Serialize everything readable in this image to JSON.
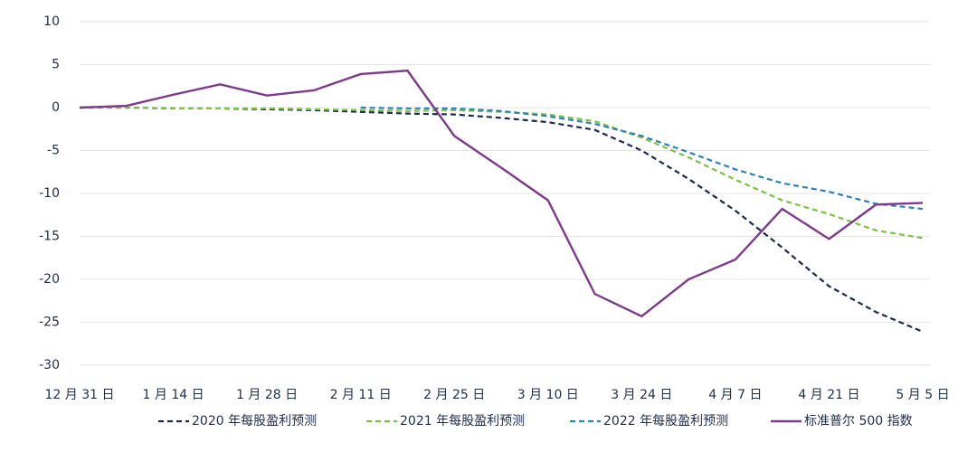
{
  "chart_data": {
    "type": "line",
    "categories": [
      "12 月 31 日",
      null,
      "1 月 14 日",
      null,
      "1 月 28 日",
      null,
      "2 月 11 日",
      null,
      "2 月 25 日",
      null,
      "3 月 10 日",
      null,
      "3 月 24 日",
      null,
      "4 月 7 日",
      null,
      "4 月 21 日",
      null,
      "5 月 5 日"
    ],
    "series": [
      {
        "name": "2020 年每股盈利预测",
        "color": "#1b2a4a",
        "dash": true,
        "values": [
          0,
          0,
          -0.1,
          -0.1,
          -0.2,
          -0.3,
          -0.5,
          -0.7,
          -0.8,
          -1.2,
          -1.7,
          -2.6,
          -5,
          -8.3,
          -12,
          -16.3,
          -20.8,
          -23.8,
          -26.1
        ]
      },
      {
        "name": "2021 年每股盈利预测",
        "color": "#7ac143",
        "dash": true,
        "values": [
          0,
          0,
          -0.1,
          -0.1,
          -0.1,
          -0.2,
          -0.3,
          -0.4,
          -0.3,
          -0.5,
          -0.8,
          -1.6,
          -3.5,
          -5.8,
          -8.4,
          -10.8,
          -12.4,
          -14.3,
          -15.2
        ]
      },
      {
        "name": "2022 年每股盈利预测",
        "color": "#2d7fb8",
        "dash": true,
        "values": [
          null,
          null,
          null,
          null,
          null,
          null,
          0,
          -0.1,
          -0.1,
          -0.4,
          -1.0,
          -1.9,
          -3.3,
          -5.2,
          -7.2,
          -8.8,
          -9.8,
          -11.2,
          -11.8
        ]
      },
      {
        "name": "标准普尔 500 指数",
        "color": "#7b3a8a",
        "dash": false,
        "values": [
          0,
          0.2,
          1.5,
          2.7,
          1.4,
          2.0,
          3.9,
          4.3,
          -3.3,
          -7,
          -10.8,
          -21.7,
          -24.3,
          -20,
          -17.7,
          -11.8,
          -15.3,
          -11.3,
          -11.1
        ]
      }
    ],
    "ylim": [
      -30,
      10
    ],
    "yticks": [
      -30,
      -25,
      -20,
      -15,
      -10,
      -5,
      0,
      5,
      10
    ],
    "grid": true
  }
}
